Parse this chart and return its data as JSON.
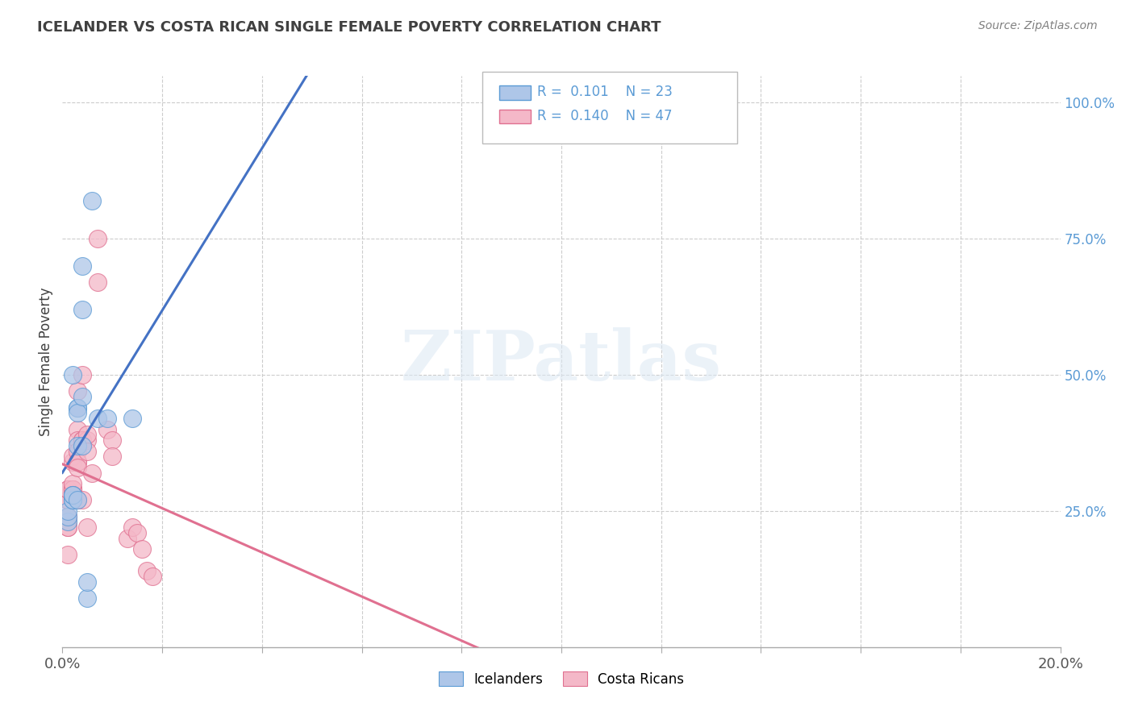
{
  "title": "ICELANDER VS COSTA RICAN SINGLE FEMALE POVERTY CORRELATION CHART",
  "source": "Source: ZipAtlas.com",
  "ylabel": "Single Female Poverty",
  "xlim": [
    0.0,
    0.2
  ],
  "ylim": [
    0.0,
    1.05
  ],
  "yticks": [
    0.25,
    0.5,
    0.75,
    1.0
  ],
  "ytick_labels": [
    "25.0%",
    "50.0%",
    "75.0%",
    "100.0%"
  ],
  "xtick_labels_bottom": [
    "0.0%",
    "20.0%"
  ],
  "grid_color": "#cccccc",
  "background_color": "#ffffff",
  "watermark_text": "ZIPatlas",
  "legend_R1": "0.101",
  "legend_N1": "23",
  "legend_R2": "0.140",
  "legend_N2": "47",
  "series1_color": "#aec6e8",
  "series1_edge": "#5b9bd5",
  "series2_color": "#f4b8c8",
  "series2_edge": "#e07090",
  "line1_color": "#4472c4",
  "line2_color": "#e07090",
  "title_color": "#404040",
  "source_color": "#808080",
  "ylabel_color": "#404040",
  "right_tick_color": "#5b9bd5",
  "icelanders_x": [
    0.001,
    0.001,
    0.001,
    0.002,
    0.002,
    0.002,
    0.002,
    0.002,
    0.003,
    0.003,
    0.003,
    0.003,
    0.003,
    0.004,
    0.004,
    0.004,
    0.004,
    0.005,
    0.005,
    0.006,
    0.007,
    0.009,
    0.014
  ],
  "icelanders_y": [
    0.23,
    0.24,
    0.25,
    0.27,
    0.27,
    0.28,
    0.28,
    0.5,
    0.44,
    0.44,
    0.43,
    0.37,
    0.27,
    0.62,
    0.7,
    0.46,
    0.37,
    0.09,
    0.12,
    0.82,
    0.42,
    0.42,
    0.42
  ],
  "costa_ricans_x": [
    0.001,
    0.001,
    0.001,
    0.001,
    0.001,
    0.001,
    0.001,
    0.001,
    0.001,
    0.001,
    0.002,
    0.002,
    0.002,
    0.002,
    0.002,
    0.002,
    0.002,
    0.002,
    0.002,
    0.003,
    0.003,
    0.003,
    0.003,
    0.003,
    0.003,
    0.003,
    0.003,
    0.004,
    0.004,
    0.004,
    0.004,
    0.005,
    0.005,
    0.005,
    0.005,
    0.006,
    0.007,
    0.007,
    0.009,
    0.01,
    0.01,
    0.013,
    0.014,
    0.015,
    0.016,
    0.017,
    0.018
  ],
  "costa_ricans_y": [
    0.24,
    0.23,
    0.22,
    0.24,
    0.27,
    0.27,
    0.29,
    0.29,
    0.22,
    0.17,
    0.34,
    0.35,
    0.29,
    0.29,
    0.29,
    0.29,
    0.28,
    0.3,
    0.28,
    0.47,
    0.4,
    0.38,
    0.36,
    0.34,
    0.34,
    0.33,
    0.27,
    0.5,
    0.38,
    0.38,
    0.27,
    0.38,
    0.39,
    0.36,
    0.22,
    0.32,
    0.67,
    0.75,
    0.4,
    0.38,
    0.35,
    0.2,
    0.22,
    0.21,
    0.18,
    0.14,
    0.13
  ],
  "line1_x_solid_end": 0.155,
  "line1_x_dash_end": 0.2
}
